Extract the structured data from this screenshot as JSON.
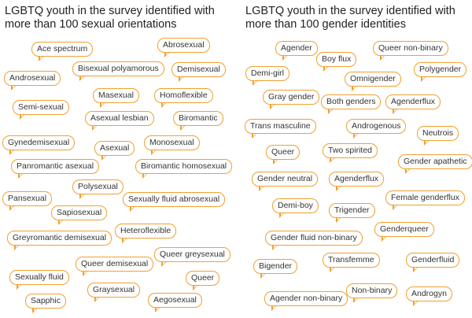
{
  "left": {
    "title": "LGBTQ youth in the survey identified with more than 100 sexual orientations",
    "bubbles": [
      "Ace spectrum",
      "Abrosexual",
      "Androsexual",
      "Bisexual polyamorous",
      "Demisexual",
      "Masexual",
      "Homoflexible",
      "Semi-sexual",
      "Asexual lesbian",
      "Biromantic",
      "Gynedemisexual",
      "Asexual",
      "Monosexual",
      "Panromantic asexual",
      "Biromantic homosexual",
      "Polysexual",
      "Pansexual",
      "Sexually fluid abrosexual",
      "Sapiosexual",
      "Heteroflexible",
      "Greyromantic demisexual",
      "Queer greysexual",
      "Queer demisexual",
      "Sexually fluid",
      "Queer",
      "Graysexual",
      "Sapphic",
      "Aegosexual"
    ]
  },
  "right": {
    "title": "LGBTQ youth in the survey identified with more than 100 gender identities",
    "bubbles": [
      "Agender",
      "Queer non-binary",
      "Boy flux",
      "Demi-girl",
      "Polygender",
      "Omnigender",
      "Gray gender",
      "Both genders",
      "Agenderflux",
      "Trans masculine",
      "Androgenous",
      "Neutrois",
      "Queer",
      "Two spirited",
      "Gender apathetic",
      "Gender neutral",
      "Agenderflux",
      "Demi-boy",
      "Female genderflux",
      "Trigender",
      "Genderqueer",
      "Gender fluid non-binary",
      "Bigender",
      "Transfemme",
      "Genderfluid",
      "Agender non-binary",
      "Non-binary",
      "Androgyn"
    ]
  }
}
